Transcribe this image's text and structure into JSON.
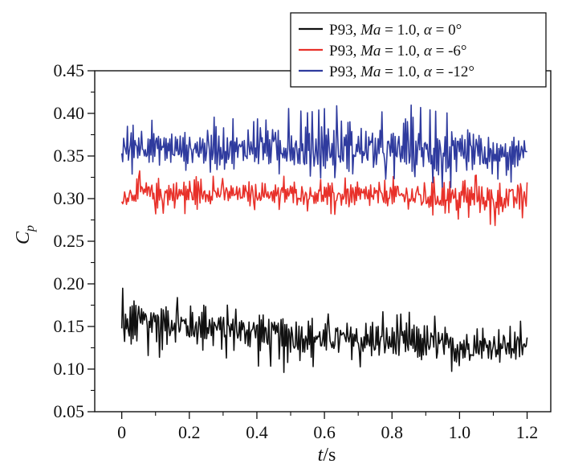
{
  "chart_data": {
    "type": "line",
    "xlabel_italic": "t",
    "xlabel_rest": "/s",
    "ylabel_main": "C",
    "ylabel_sub": "p",
    "xlim": [
      -0.08,
      1.27
    ],
    "ylim": [
      0.05,
      0.45
    ],
    "xticks": [
      0.0,
      0.2,
      0.4,
      0.6,
      0.8,
      1.0,
      1.2
    ],
    "xtick_labels": [
      "0",
      "0.2",
      "0.4",
      "0.6",
      "0.8",
      "1.0",
      "1.2"
    ],
    "yticks": [
      0.05,
      0.1,
      0.15,
      0.2,
      0.25,
      0.3,
      0.35,
      0.4,
      0.45
    ],
    "ytick_labels": [
      "0.05",
      "0.10",
      "0.15",
      "0.20",
      "0.25",
      "0.30",
      "0.35",
      "0.40",
      "0.45"
    ],
    "grid": false,
    "legend_position": "top-right",
    "series": [
      {
        "name": "P93, Ma = 1.0, α = 0°",
        "legend_prefix": "P93, ",
        "legend_italic": "Ma",
        "legend_middle": " = 1.0, ",
        "legend_greek": "α",
        "legend_suffix": " = 0°",
        "color": "#111111",
        "x": [
          0.0,
          0.05,
          0.1,
          0.15,
          0.2,
          0.25,
          0.3,
          0.35,
          0.4,
          0.45,
          0.5,
          0.55,
          0.6,
          0.65,
          0.7,
          0.75,
          0.8,
          0.85,
          0.9,
          0.95,
          1.0,
          1.05,
          1.1,
          1.15,
          1.2
        ],
        "y": [
          0.138,
          0.158,
          0.16,
          0.155,
          0.152,
          0.15,
          0.148,
          0.146,
          0.145,
          0.143,
          0.14,
          0.138,
          0.136,
          0.135,
          0.134,
          0.132,
          0.131,
          0.13,
          0.129,
          0.128,
          0.127,
          0.127,
          0.126,
          0.126,
          0.125
        ],
        "y_min": [
          0.12,
          0.115,
          0.11,
          0.11,
          0.1,
          0.11,
          0.11,
          0.11,
          0.1,
          0.1,
          0.087,
          0.1,
          0.1,
          0.1,
          0.1,
          0.1,
          0.1,
          0.1,
          0.095,
          0.09,
          0.072,
          0.1,
          0.1,
          0.1,
          0.1
        ],
        "y_max": [
          0.2,
          0.195,
          0.18,
          0.185,
          0.19,
          0.175,
          0.18,
          0.17,
          0.18,
          0.17,
          0.175,
          0.17,
          0.165,
          0.175,
          0.17,
          0.175,
          0.165,
          0.17,
          0.165,
          0.165,
          0.155,
          0.165,
          0.16,
          0.165,
          0.155
        ]
      },
      {
        "name": "P93, Ma = 1.0, α = -6°",
        "legend_prefix": "P93, ",
        "legend_italic": "Ma",
        "legend_middle": " = 1.0, ",
        "legend_greek": "α",
        "legend_suffix": " = -6°",
        "color": "#e8312a",
        "x": [
          0.0,
          0.05,
          0.1,
          0.15,
          0.2,
          0.25,
          0.3,
          0.35,
          0.4,
          0.45,
          0.5,
          0.55,
          0.6,
          0.65,
          0.7,
          0.75,
          0.8,
          0.85,
          0.9,
          0.95,
          1.0,
          1.05,
          1.1,
          1.15,
          1.2
        ],
        "y": [
          0.3,
          0.308,
          0.306,
          0.305,
          0.305,
          0.306,
          0.307,
          0.305,
          0.306,
          0.305,
          0.306,
          0.304,
          0.305,
          0.303,
          0.303,
          0.303,
          0.304,
          0.302,
          0.301,
          0.302,
          0.302,
          0.3,
          0.3,
          0.3,
          0.3
        ],
        "y_min": [
          0.283,
          0.285,
          0.28,
          0.282,
          0.28,
          0.285,
          0.282,
          0.288,
          0.285,
          0.287,
          0.283,
          0.284,
          0.282,
          0.278,
          0.282,
          0.28,
          0.283,
          0.275,
          0.268,
          0.27,
          0.274,
          0.278,
          0.265,
          0.272,
          0.277
        ],
        "y_max": [
          0.325,
          0.335,
          0.33,
          0.33,
          0.34,
          0.33,
          0.325,
          0.323,
          0.33,
          0.325,
          0.33,
          0.32,
          0.325,
          0.325,
          0.33,
          0.33,
          0.335,
          0.335,
          0.335,
          0.335,
          0.32,
          0.33,
          0.325,
          0.33,
          0.348
        ]
      },
      {
        "name": "P93, Ma = 1.0, α = -12°",
        "legend_prefix": "P93, ",
        "legend_italic": "Ma",
        "legend_middle": " = 1.0, ",
        "legend_greek": "α",
        "legend_suffix": " = -12°",
        "color": "#2f3b9e",
        "x": [
          0.0,
          0.05,
          0.1,
          0.15,
          0.2,
          0.25,
          0.3,
          0.35,
          0.4,
          0.45,
          0.5,
          0.55,
          0.6,
          0.65,
          0.7,
          0.75,
          0.8,
          0.85,
          0.9,
          0.95,
          1.0,
          1.05,
          1.1,
          1.15,
          1.2
        ],
        "y": [
          0.355,
          0.362,
          0.36,
          0.358,
          0.357,
          0.358,
          0.356,
          0.355,
          0.36,
          0.358,
          0.357,
          0.352,
          0.355,
          0.354,
          0.356,
          0.354,
          0.355,
          0.357,
          0.352,
          0.35,
          0.347,
          0.352,
          0.348,
          0.35,
          0.355
        ],
        "y_min": [
          0.32,
          0.33,
          0.33,
          0.33,
          0.325,
          0.33,
          0.325,
          0.33,
          0.33,
          0.325,
          0.33,
          0.31,
          0.325,
          0.32,
          0.33,
          0.32,
          0.32,
          0.325,
          0.32,
          0.31,
          0.31,
          0.32,
          0.31,
          0.315,
          0.35
        ],
        "y_max": [
          0.41,
          0.412,
          0.39,
          0.39,
          0.39,
          0.398,
          0.4,
          0.395,
          0.427,
          0.41,
          0.41,
          0.405,
          0.41,
          0.415,
          0.413,
          0.41,
          0.4,
          0.415,
          0.41,
          0.405,
          0.405,
          0.4,
          0.38,
          0.39,
          0.365
        ]
      }
    ]
  }
}
